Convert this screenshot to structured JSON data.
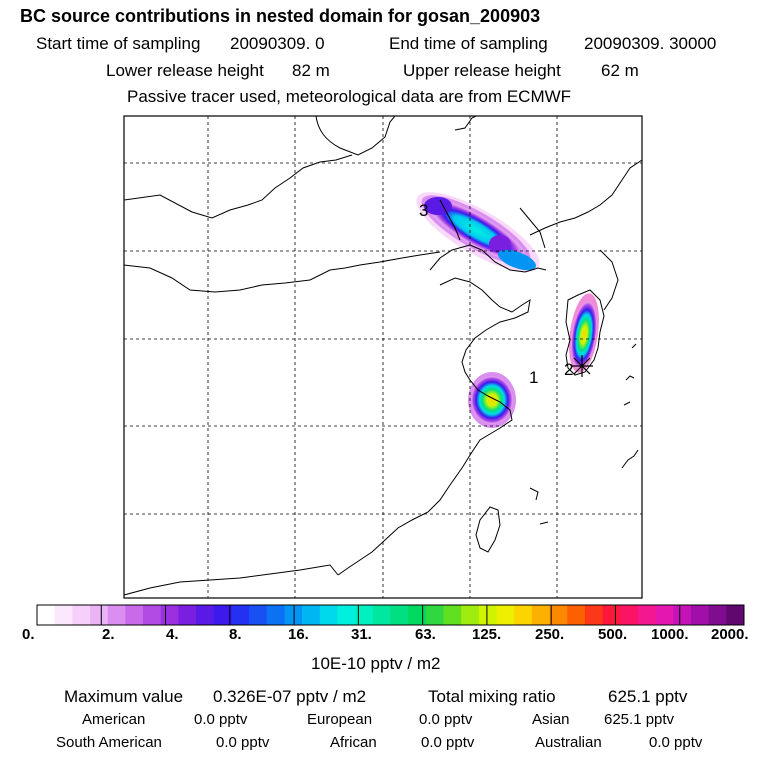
{
  "title": "BC  source contributions in nested domain for gosan_200903",
  "sampling": {
    "start_label": "Start time of sampling",
    "start_value": "20090309.     0",
    "end_label": "End time of sampling",
    "end_value": "20090309. 30000"
  },
  "release": {
    "lower_label": "Lower release height",
    "lower_value": "82 m",
    "upper_label": "Upper release height",
    "upper_value": "62 m"
  },
  "note": "Passive tracer used, meteorological data are from ECMWF",
  "map_labels": {
    "region1": "1",
    "region2": "2",
    "region3": "3"
  },
  "colorbar": {
    "tick_labels": [
      "0.",
      "2.",
      "4.",
      "8.",
      "16.",
      "31.",
      "63.",
      "125.",
      "250.",
      "500.",
      "1000.",
      "2000."
    ],
    "unit": "10E-10 pptv / m2",
    "colors": [
      "#ffffff",
      "#fce8fc",
      "#f6d0fa",
      "#eab4f6",
      "#d98ef0",
      "#c86aea",
      "#b24ae4",
      "#9a30e0",
      "#7a1ee0",
      "#5a1ae6",
      "#3c1aee",
      "#2430f2",
      "#1850f2",
      "#0c72f4",
      "#0494f4",
      "#00b6f2",
      "#00d8ec",
      "#00f0e0",
      "#00f0c0",
      "#00e8a0",
      "#00e080",
      "#00d860",
      "#30d840",
      "#60e020",
      "#a0ec10",
      "#d0f400",
      "#eef000",
      "#fcd400",
      "#fcb000",
      "#fc8800",
      "#fc6000",
      "#fc3818",
      "#fc1838",
      "#fc1464",
      "#f41890",
      "#e418b0",
      "#c414b8",
      "#a010a8",
      "#800c90",
      "#600870"
    ]
  },
  "stats": {
    "max_label": "Maximum value",
    "max_value": "0.326E-07 pptv / m2",
    "total_label": "Total mixing ratio",
    "total_value": "625.1 pptv"
  },
  "regions": {
    "american_label": "American",
    "american_value": "0.0 pptv",
    "european_label": "European",
    "european_value": "0.0 pptv",
    "asian_label": "Asian",
    "asian_value": "625.1 pptv",
    "south_american_label": "South American",
    "south_american_value": "0.0 pptv",
    "african_label": "African",
    "african_value": "0.0 pptv",
    "australian_label": "Australian",
    "australian_value": "0.0 pptv"
  }
}
